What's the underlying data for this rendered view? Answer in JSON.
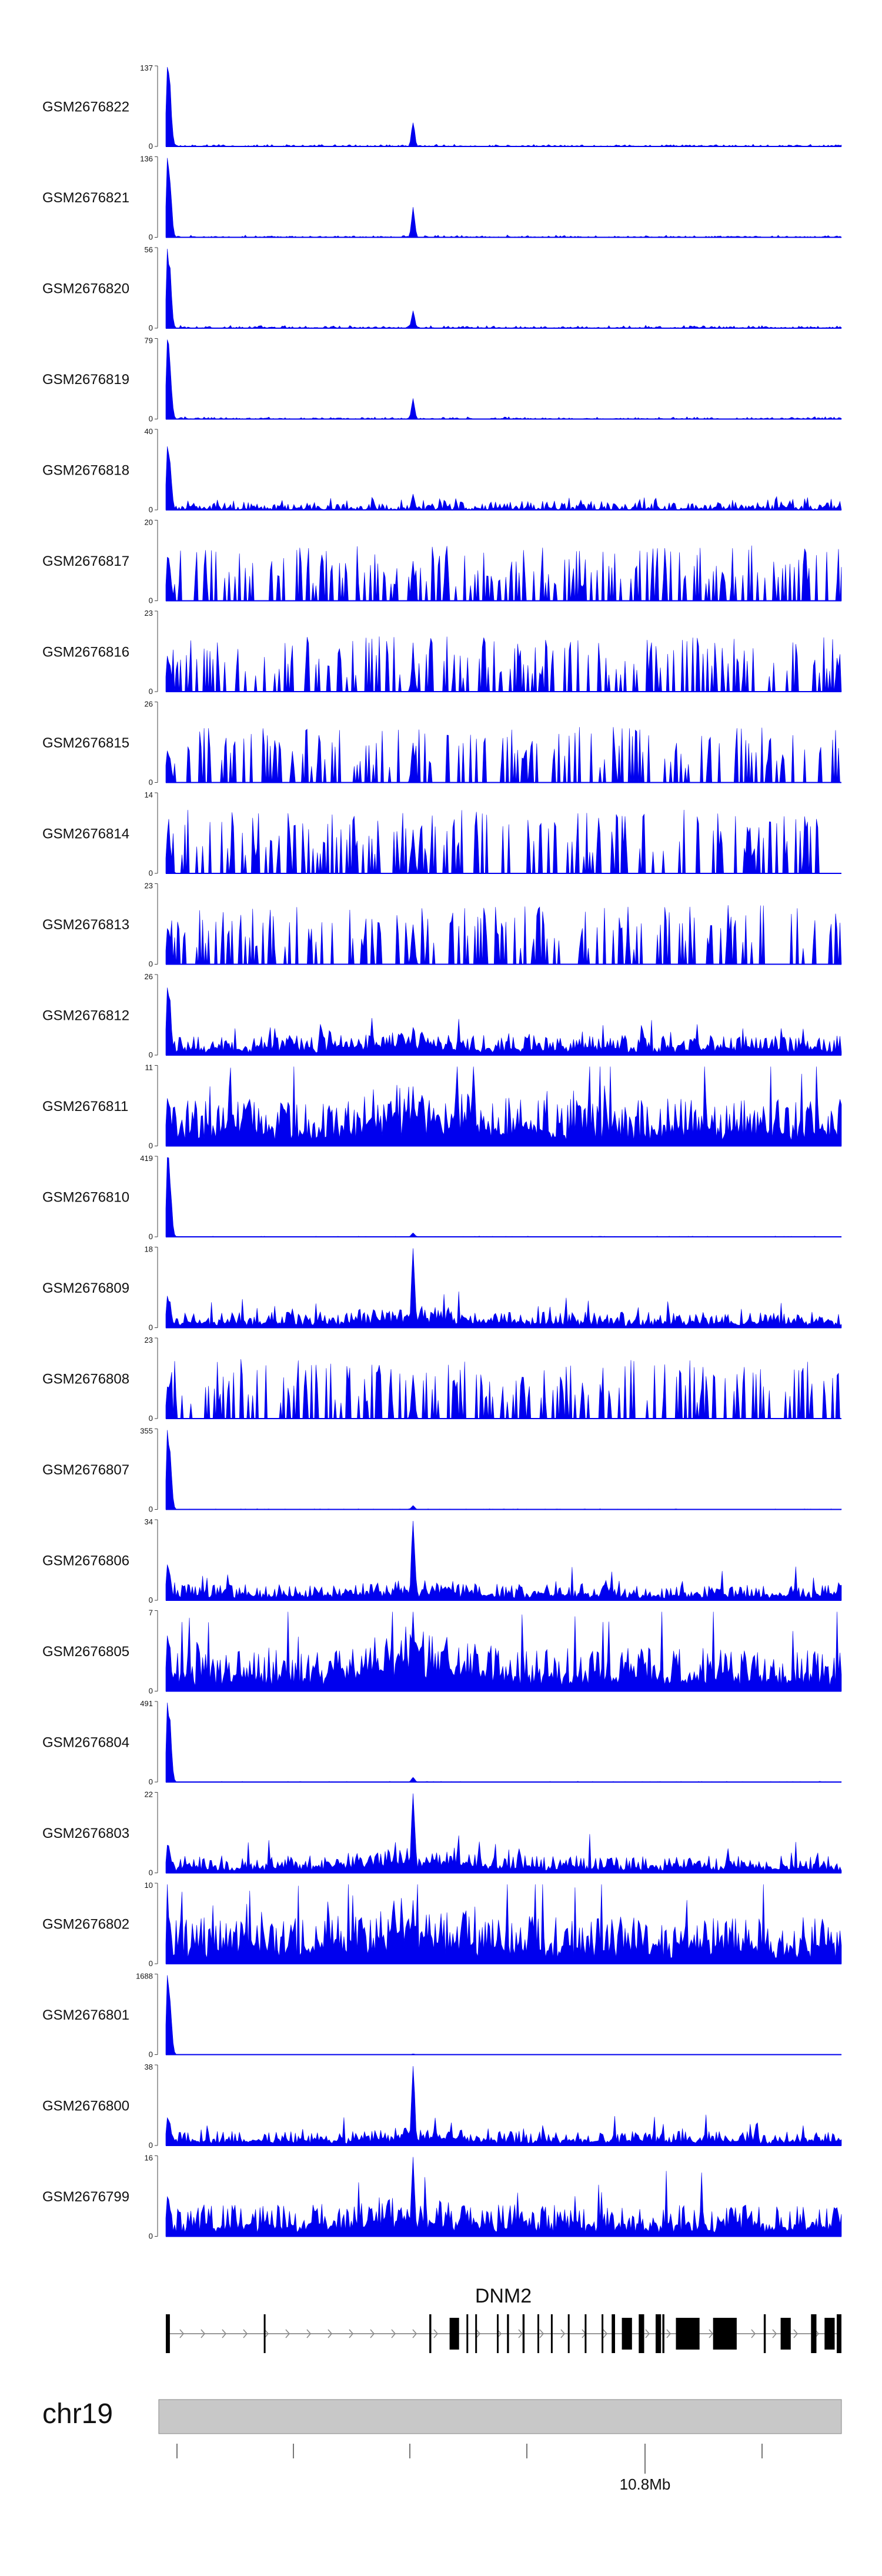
{
  "chart_data": {
    "type": "area",
    "x_axis": {
      "tick_labels": [
        "10.8Mb"
      ]
    },
    "tracks": [
      {
        "name": "GSM2676822",
        "ymax": "137",
        "ymin": "0",
        "max": 137,
        "profile": "peak",
        "main_peak": 1.0,
        "tss_peak": 0.3,
        "noise": 0.03,
        "sparse": false
      },
      {
        "name": "GSM2676821",
        "ymax": "136",
        "ymin": "0",
        "max": 136,
        "profile": "peak",
        "main_peak": 1.0,
        "tss_peak": 0.38,
        "noise": 0.03,
        "sparse": false
      },
      {
        "name": "GSM2676820",
        "ymax": "56",
        "ymin": "0",
        "max": 56,
        "profile": "peak",
        "main_peak": 1.0,
        "tss_peak": 0.22,
        "noise": 0.04,
        "sparse": false
      },
      {
        "name": "GSM2676819",
        "ymax": "79",
        "ymin": "0",
        "max": 79,
        "profile": "peak",
        "main_peak": 1.0,
        "tss_peak": 0.26,
        "noise": 0.03,
        "sparse": false
      },
      {
        "name": "GSM2676818",
        "ymax": "40",
        "ymin": "0",
        "max": 40,
        "profile": "peak",
        "main_peak": 0.8,
        "tss_peak": 0.2,
        "noise": 0.18,
        "sparse": false
      },
      {
        "name": "GSM2676817",
        "ymax": "20",
        "ymin": "0",
        "max": 20,
        "profile": "sparse",
        "main_peak": 0.55,
        "tss_peak": 0.5,
        "noise": 0.7,
        "sparse": true
      },
      {
        "name": "GSM2676816",
        "ymax": "23",
        "ymin": "0",
        "max": 23,
        "profile": "sparse",
        "main_peak": 0.45,
        "tss_peak": 0.45,
        "noise": 0.7,
        "sparse": true
      },
      {
        "name": "GSM2676815",
        "ymax": "26",
        "ymin": "0",
        "max": 26,
        "profile": "sparse",
        "main_peak": 0.4,
        "tss_peak": 0.5,
        "noise": 0.7,
        "sparse": true
      },
      {
        "name": "GSM2676814",
        "ymax": "14",
        "ymin": "0",
        "max": 14,
        "profile": "sparse",
        "main_peak": 0.5,
        "tss_peak": 0.55,
        "noise": 0.8,
        "sparse": true
      },
      {
        "name": "GSM2676813",
        "ymax": "23",
        "ymin": "0",
        "max": 23,
        "profile": "sparse",
        "main_peak": 0.45,
        "tss_peak": 0.5,
        "noise": 0.75,
        "sparse": true
      },
      {
        "name": "GSM2676812",
        "ymax": "26",
        "ymin": "0",
        "max": 26,
        "profile": "dense",
        "main_peak": 0.85,
        "tss_peak": 0.35,
        "noise": 0.25,
        "sparse": false
      },
      {
        "name": "GSM2676811",
        "ymax": "11",
        "ymin": "0",
        "max": 11,
        "profile": "dense",
        "main_peak": 0.6,
        "tss_peak": 0.75,
        "noise": 0.6,
        "sparse": false
      },
      {
        "name": "GSM2676810",
        "ymax": "419",
        "ymin": "0",
        "max": 419,
        "profile": "peak",
        "main_peak": 1.0,
        "tss_peak": 0.05,
        "noise": 0.01,
        "sparse": false
      },
      {
        "name": "GSM2676809",
        "ymax": "18",
        "ymin": "0",
        "max": 18,
        "profile": "dense",
        "main_peak": 0.4,
        "tss_peak": 1.0,
        "noise": 0.2,
        "sparse": false
      },
      {
        "name": "GSM2676808",
        "ymax": "23",
        "ymin": "0",
        "max": 23,
        "profile": "sparse",
        "main_peak": 0.4,
        "tss_peak": 0.55,
        "noise": 0.75,
        "sparse": true
      },
      {
        "name": "GSM2676807",
        "ymax": "355",
        "ymin": "0",
        "max": 355,
        "profile": "peak",
        "main_peak": 1.0,
        "tss_peak": 0.05,
        "noise": 0.01,
        "sparse": false
      },
      {
        "name": "GSM2676806",
        "ymax": "34",
        "ymin": "0",
        "max": 34,
        "profile": "dense",
        "main_peak": 0.45,
        "tss_peak": 1.0,
        "noise": 0.2,
        "sparse": false
      },
      {
        "name": "GSM2676805",
        "ymax": "7",
        "ymin": "0",
        "max": 7,
        "profile": "dense",
        "main_peak": 0.7,
        "tss_peak": 1.0,
        "noise": 0.55,
        "sparse": false
      },
      {
        "name": "GSM2676804",
        "ymax": "491",
        "ymin": "0",
        "max": 491,
        "profile": "peak",
        "main_peak": 1.0,
        "tss_peak": 0.06,
        "noise": 0.01,
        "sparse": false
      },
      {
        "name": "GSM2676803",
        "ymax": "22",
        "ymin": "0",
        "max": 22,
        "profile": "dense",
        "main_peak": 0.35,
        "tss_peak": 1.0,
        "noise": 0.22,
        "sparse": false
      },
      {
        "name": "GSM2676802",
        "ymax": "10",
        "ymin": "0",
        "max": 10,
        "profile": "dense",
        "main_peak": 0.7,
        "tss_peak": 0.8,
        "noise": 0.6,
        "sparse": false
      },
      {
        "name": "GSM2676801",
        "ymax": "1688",
        "ymin": "0",
        "max": 1688,
        "profile": "peak",
        "main_peak": 1.0,
        "tss_peak": 0.01,
        "noise": 0.005,
        "sparse": false
      },
      {
        "name": "GSM2676800",
        "ymax": "38",
        "ymin": "0",
        "max": 38,
        "profile": "dense",
        "main_peak": 0.35,
        "tss_peak": 1.0,
        "noise": 0.18,
        "sparse": false
      },
      {
        "name": "GSM2676799",
        "ymax": "16",
        "ymin": "0",
        "max": 16,
        "profile": "dense",
        "main_peak": 0.5,
        "tss_peak": 1.0,
        "noise": 0.4,
        "sparse": false
      }
    ],
    "gene": {
      "label": "DNM2",
      "exons": [
        [
          0.0,
          0.006
        ],
        [
          0.145,
          0.147
        ],
        [
          0.39,
          0.393
        ],
        [
          0.42,
          0.434
        ],
        [
          0.445,
          0.447
        ],
        [
          0.458,
          0.46
        ],
        [
          0.49,
          0.492
        ],
        [
          0.505,
          0.508
        ],
        [
          0.528,
          0.531
        ],
        [
          0.55,
          0.552
        ],
        [
          0.57,
          0.572
        ],
        [
          0.595,
          0.597
        ],
        [
          0.62,
          0.622
        ],
        [
          0.645,
          0.647
        ],
        [
          0.66,
          0.665
        ],
        [
          0.675,
          0.69
        ],
        [
          0.7,
          0.708
        ],
        [
          0.725,
          0.733
        ],
        [
          0.735,
          0.738
        ],
        [
          0.755,
          0.79
        ],
        [
          0.81,
          0.845
        ],
        [
          0.885,
          0.888
        ],
        [
          0.91,
          0.925
        ],
        [
          0.955,
          0.963
        ],
        [
          0.975,
          0.99
        ],
        [
          0.993,
          1.0
        ]
      ]
    },
    "ideogram": {
      "label": "chr19"
    },
    "colors": {
      "signal": "#0000ee",
      "ideogram": "#c8c8c8",
      "text": "#111111",
      "gene": "#000000"
    }
  }
}
